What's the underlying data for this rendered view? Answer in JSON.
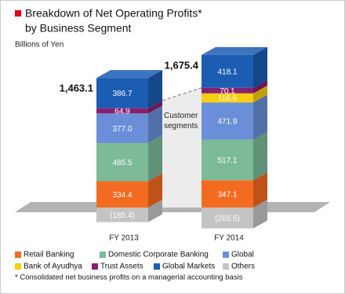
{
  "chart_data": {
    "type": "bar",
    "stacked": true,
    "title": "Breakdown of Net Operating Profits*",
    "subtitle": "by Business Segment",
    "unit_label": "Billions of Yen",
    "annotation": "Customer segments",
    "footnote": "* Consolidated net business profits on a managerial accounting basis",
    "categories": [
      "FY 2013",
      "FY 2014"
    ],
    "totals": [
      {
        "value": 1463.1,
        "label": "1,463.1"
      },
      {
        "value": 1675.4,
        "label": "1,675.4"
      }
    ],
    "series": [
      {
        "name": "Retail Banking",
        "color": "#f26b21",
        "values": [
          334.4,
          347.1
        ]
      },
      {
        "name": "Domestic Corporate Banking",
        "color": "#7dba98",
        "values": [
          485.5,
          517.1
        ]
      },
      {
        "name": "Global",
        "color": "#6a8fd8",
        "values": [
          377.0,
          471.9
        ],
        "value_labels": [
          "377.0",
          "471.9"
        ]
      },
      {
        "name": "Bank of Ayudhya",
        "color": "#f5cf12",
        "values": [
          null,
          116.6
        ]
      },
      {
        "name": "Trust Assets",
        "color": "#8b1f6e",
        "values": [
          64.9,
          70.1
        ]
      },
      {
        "name": "Global Markets",
        "color": "#1c5cb3",
        "values": [
          386.7,
          418.1
        ]
      },
      {
        "name": "Others",
        "color": "#c4c4c4",
        "values": [
          -185.4,
          -265.5
        ],
        "value_labels": [
          "(185.4)",
          "(265.5)"
        ]
      }
    ]
  }
}
